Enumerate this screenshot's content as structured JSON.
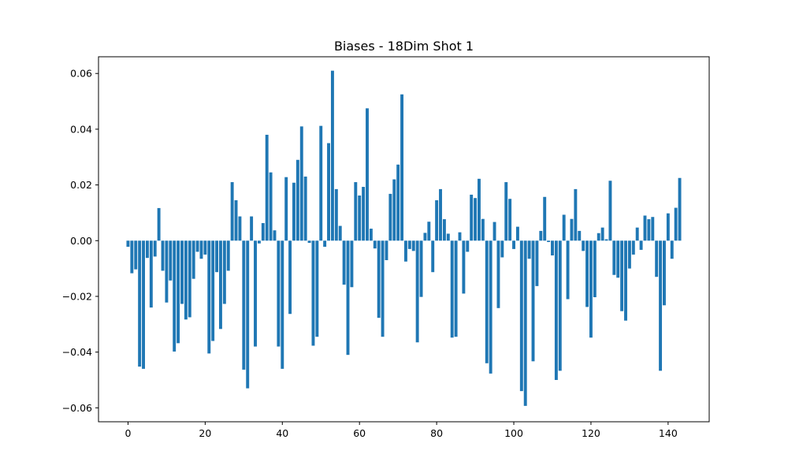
{
  "chart_data": {
    "type": "bar",
    "title": "Biases - 18Dim Shot 1",
    "xlabel": "",
    "ylabel": "",
    "xlim": [
      -7.65,
      150.65
    ],
    "ylim": [
      -0.065,
      0.066
    ],
    "x_ticks": [
      0,
      20,
      40,
      60,
      80,
      100,
      120,
      140
    ],
    "y_ticks": [
      -0.06,
      -0.04,
      -0.02,
      0.0,
      0.02,
      0.04,
      0.06
    ],
    "x_tick_labels": [
      "0",
      "20",
      "40",
      "60",
      "80",
      "100",
      "120",
      "140"
    ],
    "y_tick_labels": [
      "−0.06",
      "−0.04",
      "−0.02",
      "0.00",
      "0.02",
      "0.04",
      "0.06"
    ],
    "bar_color": "#1f77b4",
    "grid": false,
    "values": [
      -0.0022,
      -0.0117,
      -0.0103,
      -0.0452,
      -0.046,
      -0.0062,
      -0.024,
      -0.0057,
      0.0117,
      -0.0108,
      -0.0222,
      -0.0143,
      -0.0398,
      -0.0368,
      -0.0227,
      -0.0283,
      -0.0275,
      -0.0137,
      -0.004,
      -0.0065,
      -0.005,
      -0.0405,
      -0.036,
      -0.0113,
      -0.0317,
      -0.0227,
      -0.0108,
      0.021,
      0.0145,
      0.0087,
      -0.0463,
      -0.053,
      0.0087,
      -0.038,
      -0.001,
      0.0063,
      0.038,
      0.0245,
      0.0037,
      -0.038,
      -0.046,
      0.0228,
      -0.0263,
      0.0208,
      0.029,
      0.041,
      0.023,
      -0.0008,
      -0.0377,
      -0.0345,
      0.0412,
      -0.0022,
      0.035,
      0.061,
      0.0185,
      0.0053,
      -0.0158,
      -0.041,
      -0.0167,
      0.021,
      0.0162,
      0.0193,
      0.0475,
      0.0043,
      -0.0028,
      -0.0277,
      -0.0345,
      -0.007,
      0.0168,
      0.022,
      0.0273,
      0.0525,
      -0.0075,
      -0.003,
      -0.0037,
      -0.0365,
      -0.0202,
      0.0028,
      0.0068,
      -0.0113,
      0.0145,
      0.0185,
      0.0077,
      0.0025,
      -0.0348,
      -0.0345,
      0.003,
      -0.019,
      -0.004,
      0.0165,
      0.0153,
      0.0222,
      0.0078,
      -0.044,
      -0.0477,
      0.0067,
      -0.0242,
      -0.006,
      0.021,
      0.015,
      -0.003,
      0.005,
      -0.054,
      -0.0593,
      -0.0065,
      -0.0433,
      -0.0163,
      0.0035,
      0.0157,
      -0.0005,
      -0.0053,
      -0.05,
      -0.0467,
      0.0093,
      -0.021,
      0.0078,
      0.0185,
      0.0035,
      -0.0037,
      -0.0238,
      -0.0348,
      -0.0203,
      0.0027,
      0.0047,
      0.0005,
      0.0215,
      -0.0123,
      -0.0133,
      -0.0253,
      -0.0287,
      -0.01,
      -0.005,
      0.0047,
      -0.0033,
      0.009,
      0.0077,
      0.0085,
      -0.013,
      -0.0467,
      -0.0232,
      0.0098,
      -0.0065,
      0.0118,
      0.0225
    ]
  }
}
